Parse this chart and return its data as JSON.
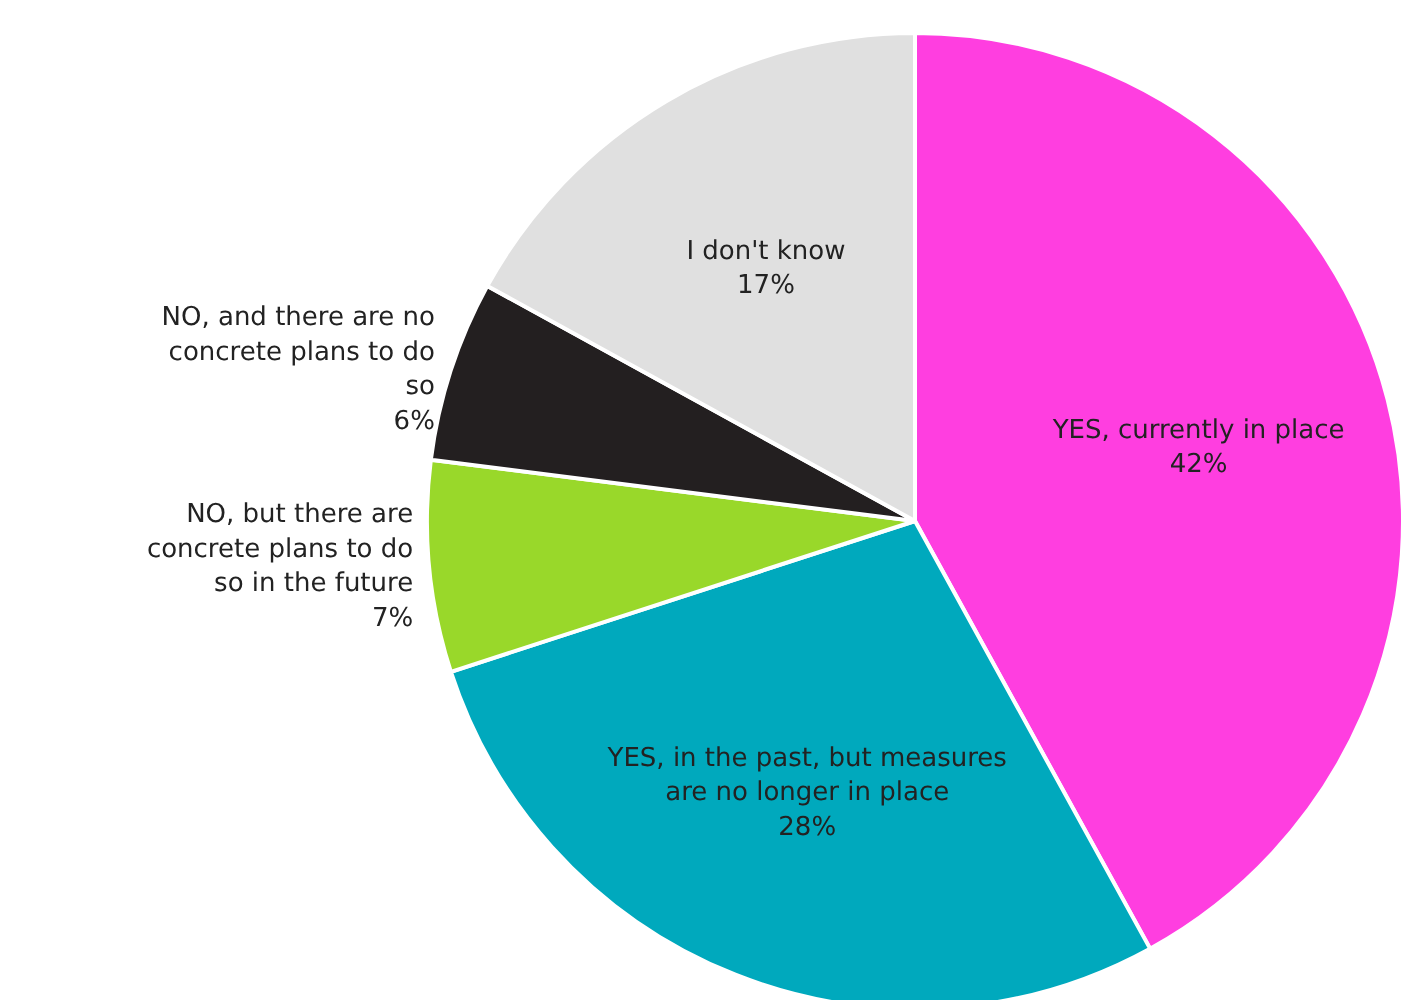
{
  "chart_data": {
    "type": "pie",
    "categories": [
      "YES, currently in place",
      "YES, in the past, but measures are no longer in place",
      "NO, but there are concrete plans to do so in the future",
      "NO, and there are no concrete plans to do so",
      "I don't know"
    ],
    "values": [
      42,
      28,
      7,
      6,
      17
    ],
    "value_labels": [
      "42%",
      "28%",
      "7%",
      "6%",
      "17%"
    ],
    "colors": [
      "#ff3ee0",
      "#00a9bd",
      "#99d82a",
      "#231f20",
      "#e0e0e0"
    ]
  }
}
